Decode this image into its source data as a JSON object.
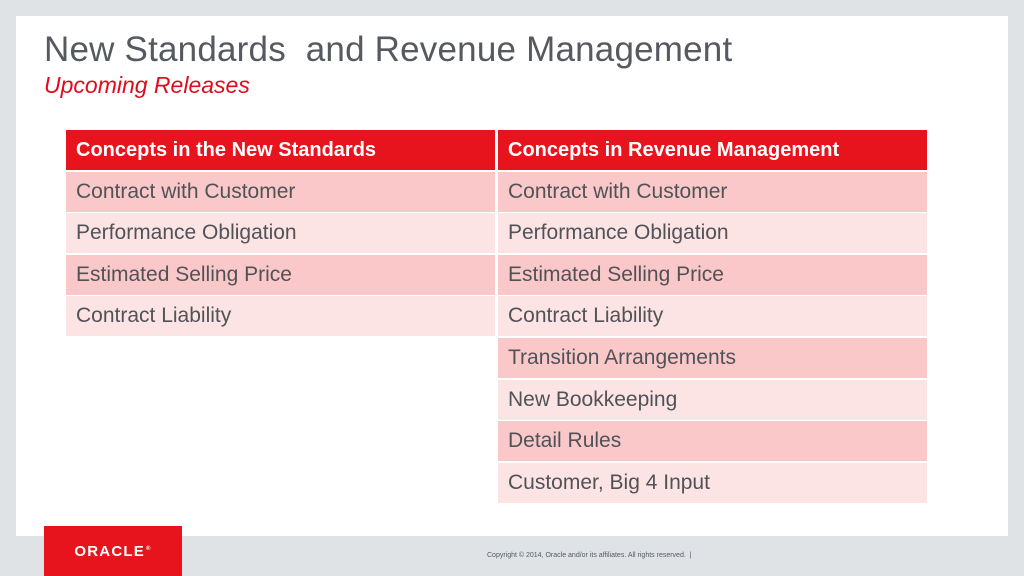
{
  "slide": {
    "title": "New Standards  and Revenue Management",
    "subtitle": "Upcoming Releases"
  },
  "table": {
    "headers": [
      "Concepts in the New Standards",
      "Concepts in Revenue Management"
    ],
    "rows": [
      [
        "Contract with Customer",
        "Contract with Customer"
      ],
      [
        "Performance Obligation",
        "Performance Obligation"
      ],
      [
        "Estimated Selling Price",
        "Estimated Selling Price"
      ],
      [
        "Contract Liability",
        "Contract Liability"
      ],
      [
        "",
        "Transition Arrangements"
      ],
      [
        "",
        "New Bookkeeping"
      ],
      [
        "",
        "Detail Rules"
      ],
      [
        "",
        "Customer, Big 4 Input"
      ]
    ]
  },
  "footer": {
    "logo_text": "ORACLE",
    "logo_mark": "®",
    "copyright": "Copyright © 2014, Oracle and/or its affiliates. All rights reserved.  |"
  },
  "colors": {
    "accent_red": "#e8141d",
    "row_dark": "#fbc8c9",
    "row_light": "#fde4e4",
    "title_gray": "#555a60"
  }
}
